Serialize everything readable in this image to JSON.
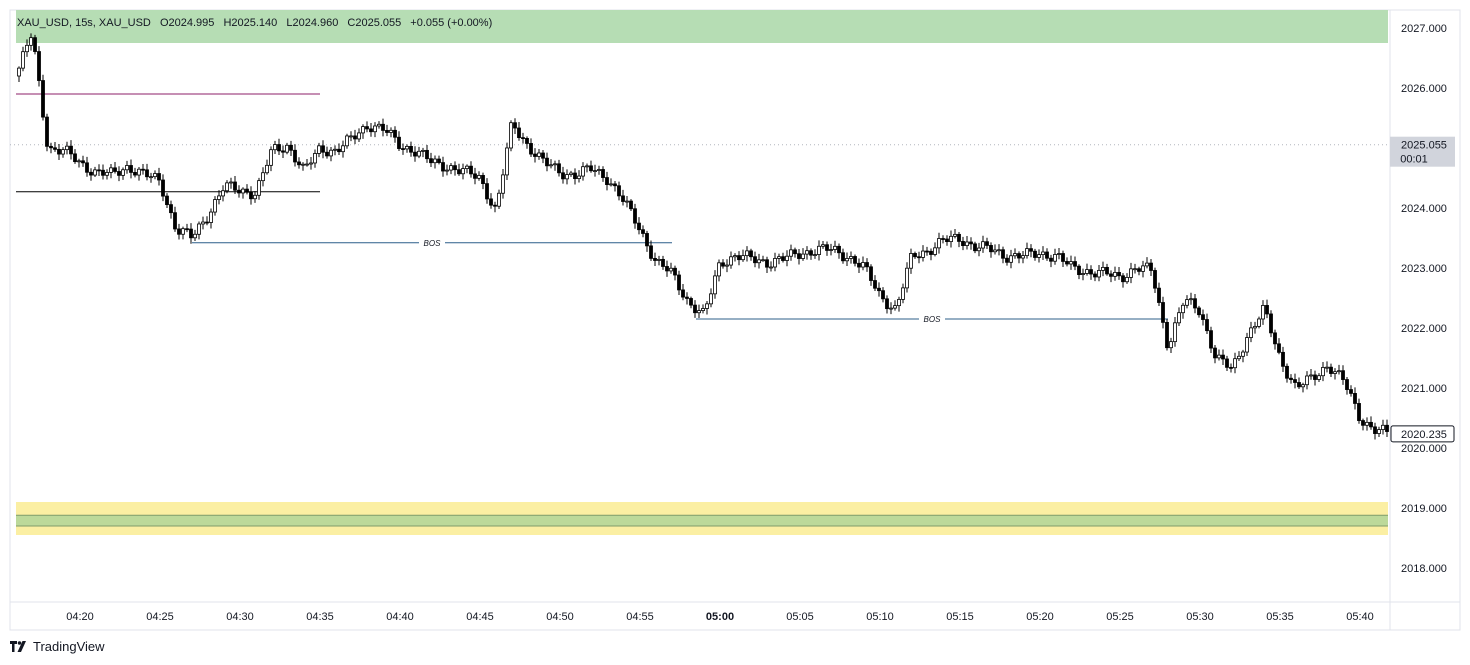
{
  "legend": {
    "symbol": "XAU_USD, 15s, XAU_USD",
    "open": "O2024.995",
    "high": "H2025.140",
    "low": "L2024.960",
    "close": "C2025.055",
    "change": "+0.055 (+0.00%)"
  },
  "branding": {
    "name": "TradingView",
    "icon": "tradingview-logo-icon"
  },
  "price_axis": {
    "ticks": [
      "2027.000",
      "2026.000",
      "2025.000",
      "2024.000",
      "2023.000",
      "2022.000",
      "2021.000",
      "2020.000",
      "2019.000",
      "2018.000"
    ],
    "crosshair_price": "2025.055",
    "crosshair_countdown": "00:01",
    "last_price": "2020.235"
  },
  "time_axis": {
    "ticks": [
      "04:20",
      "04:25",
      "04:30",
      "04:35",
      "04:40",
      "04:45",
      "04:50",
      "04:55",
      "05:00",
      "05:05",
      "05:10",
      "05:15",
      "05:20",
      "05:25",
      "05:30",
      "05:35",
      "05:40"
    ],
    "bold_tick": "05:00"
  },
  "annotations": [
    {
      "text": "BOS",
      "price": 2023.42,
      "from": "04:27",
      "to": "04:57"
    },
    {
      "text": "BOS",
      "price": 2022.15,
      "from": "04:58:30",
      "to": "05:28"
    }
  ],
  "colors": {
    "up_candle": "#ffffff",
    "down_candle": "#000000",
    "candle_border": "#000000",
    "bos_line": "#2c5f8a",
    "supply_zone": "#b6ddb4",
    "demand_zone_outer": "#fbefa3",
    "demand_zone_inner": "#bcd99a",
    "resistance_line": "#8e1f6a",
    "support_line": "#000000",
    "crosshair_label_bg": "#d1d4dc",
    "last_price_border": "#131722"
  },
  "chart_data": {
    "type": "candlestick",
    "symbol": "XAU_USD",
    "interval": "15s",
    "x_range": [
      "04:16",
      "05:42"
    ],
    "ylim": [
      2017.4,
      2027.3
    ],
    "grid": false,
    "zones": [
      {
        "kind": "supply",
        "price_from": 2026.75,
        "price_to": 2027.3,
        "time_from": "04:16",
        "time_to": "05:41:45"
      },
      {
        "kind": "demand",
        "price_from": 2018.55,
        "price_to": 2019.1,
        "time_from": "04:16",
        "time_to": "05:41:45"
      },
      {
        "kind": "demand-core",
        "price_from": 2018.7,
        "price_to": 2018.88,
        "time_from": "04:16",
        "time_to": "05:41:45"
      }
    ],
    "levels": [
      {
        "kind": "resistance",
        "price": 2025.9,
        "time_from": "04:16",
        "time_to": "04:35"
      },
      {
        "kind": "support",
        "price": 2024.27,
        "time_from": "04:16",
        "time_to": "04:35"
      }
    ],
    "close_path": [
      [
        "04:16",
        2026.2
      ],
      [
        "04:17",
        2026.9
      ],
      [
        "04:18",
        2025.0
      ],
      [
        "04:19",
        2024.95
      ],
      [
        "04:20",
        2024.75
      ],
      [
        "04:21",
        2024.6
      ],
      [
        "04:22",
        2024.55
      ],
      [
        "04:23",
        2024.7
      ],
      [
        "04:24",
        2024.55
      ],
      [
        "04:25",
        2024.45
      ],
      [
        "04:26",
        2023.65
      ],
      [
        "04:27",
        2023.5
      ],
      [
        "04:28",
        2023.9
      ],
      [
        "04:29",
        2024.35
      ],
      [
        "04:30",
        2024.3
      ],
      [
        "04:31",
        2024.25
      ],
      [
        "04:32",
        2024.95
      ],
      [
        "04:33",
        2025.05
      ],
      [
        "04:34",
        2024.6
      ],
      [
        "04:35",
        2025.0
      ],
      [
        "04:36",
        2024.95
      ],
      [
        "04:37",
        2025.15
      ],
      [
        "04:38",
        2025.4
      ],
      [
        "04:39",
        2025.3
      ],
      [
        "04:40",
        2025.05
      ],
      [
        "04:41",
        2024.95
      ],
      [
        "04:42",
        2024.75
      ],
      [
        "04:43",
        2024.7
      ],
      [
        "04:44",
        2024.6
      ],
      [
        "04:45",
        2024.5
      ],
      [
        "04:46",
        2023.95
      ],
      [
        "04:47",
        2025.4
      ],
      [
        "04:48",
        2025.05
      ],
      [
        "04:49",
        2024.75
      ],
      [
        "04:50",
        2024.6
      ],
      [
        "04:51",
        2024.55
      ],
      [
        "04:52",
        2024.65
      ],
      [
        "04:53",
        2024.5
      ],
      [
        "04:54",
        2024.1
      ],
      [
        "04:55",
        2023.65
      ],
      [
        "04:56",
        2023.1
      ],
      [
        "04:57",
        2022.9
      ],
      [
        "04:58",
        2022.45
      ],
      [
        "04:59",
        2022.2
      ],
      [
        "05:00",
        2023.1
      ],
      [
        "05:01",
        2023.2
      ],
      [
        "05:02",
        2023.15
      ],
      [
        "05:03",
        2023.1
      ],
      [
        "05:04",
        2023.15
      ],
      [
        "05:05",
        2023.25
      ],
      [
        "05:06",
        2023.3
      ],
      [
        "05:07",
        2023.3
      ],
      [
        "05:08",
        2023.2
      ],
      [
        "05:09",
        2023.0
      ],
      [
        "05:10",
        2022.55
      ],
      [
        "05:11",
        2022.3
      ],
      [
        "05:12",
        2023.2
      ],
      [
        "05:13",
        2023.3
      ],
      [
        "05:14",
        2023.45
      ],
      [
        "05:15",
        2023.5
      ],
      [
        "05:16",
        2023.35
      ],
      [
        "05:17",
        2023.3
      ],
      [
        "05:18",
        2023.2
      ],
      [
        "05:19",
        2023.2
      ],
      [
        "05:20",
        2023.25
      ],
      [
        "05:21",
        2023.2
      ],
      [
        "05:22",
        2023.0
      ],
      [
        "05:23",
        2022.95
      ],
      [
        "05:24",
        2022.9
      ],
      [
        "05:25",
        2022.85
      ],
      [
        "05:26",
        2023.0
      ],
      [
        "05:27",
        2022.95
      ],
      [
        "05:28",
        2021.7
      ],
      [
        "05:29",
        2022.45
      ],
      [
        "05:30",
        2022.3
      ],
      [
        "05:31",
        2021.5
      ],
      [
        "05:32",
        2021.3
      ],
      [
        "05:33",
        2021.9
      ],
      [
        "05:34",
        2022.3
      ],
      [
        "05:35",
        2021.5
      ],
      [
        "05:36",
        2021.0
      ],
      [
        "05:37",
        2021.15
      ],
      [
        "05:38",
        2021.4
      ],
      [
        "05:39",
        2021.1
      ],
      [
        "05:40",
        2020.5
      ],
      [
        "05:41",
        2020.3
      ],
      [
        "05:41:45",
        2020.235
      ]
    ]
  }
}
